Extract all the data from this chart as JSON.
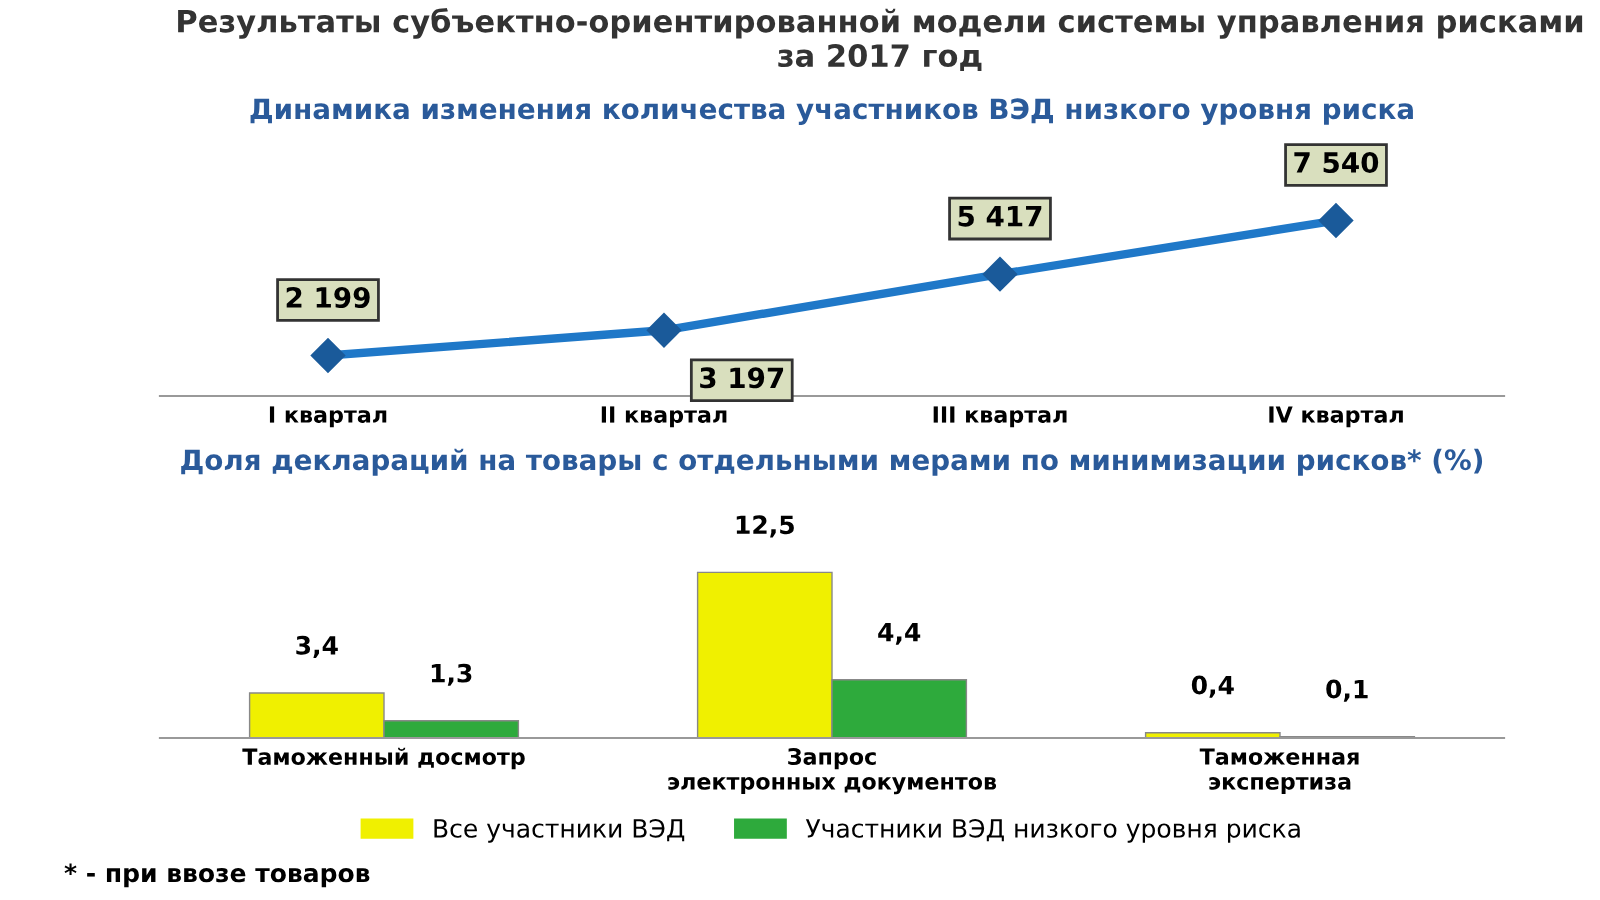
{
  "chart_data": [
    {
      "type": "line",
      "title": "Результаты субъектно-ориентированной модели системы управления рисками за 2017 год",
      "subtitle": "Динамика изменения количества участников ВЭД низкого уровня риска",
      "categories": [
        "I квартал",
        "II квартал",
        "III квартал",
        "IV квартал"
      ],
      "series": [
        {
          "color": "#1f78c8",
          "values": [
            2199,
            3197,
            5417,
            7540
          ],
          "value_labels": [
            "2 199",
            "3 197",
            "5 417",
            "7 540"
          ]
        }
      ],
      "marker": "diamond",
      "tick_labels": "x",
      "grid": false,
      "legend": false
    },
    {
      "type": "bar",
      "title": "Доля деклараций на товары с отдельными мерами по минимизации рисков* (%)",
      "categories": [
        "Таможенный досмотр",
        "Запрос электронных документов",
        "Таможенная экспертиза"
      ],
      "series": [
        {
          "name": "Все участники ВЭД",
          "color": "#f0f000",
          "values": [
            3.4,
            12.5,
            0.4
          ],
          "value_labels": [
            "3,4",
            "12,5",
            "0,4"
          ]
        },
        {
          "name": "Участники ВЭД низкого уровня риска",
          "color": "#2eaa3c",
          "values": [
            1.3,
            4.4,
            0.1
          ],
          "value_labels": [
            "1,3",
            "4,4",
            "0,1"
          ]
        }
      ],
      "annotations": [
        "* - при ввозе товаров"
      ],
      "tick_labels": "x",
      "grid": false,
      "legend": "bottom"
    }
  ]
}
